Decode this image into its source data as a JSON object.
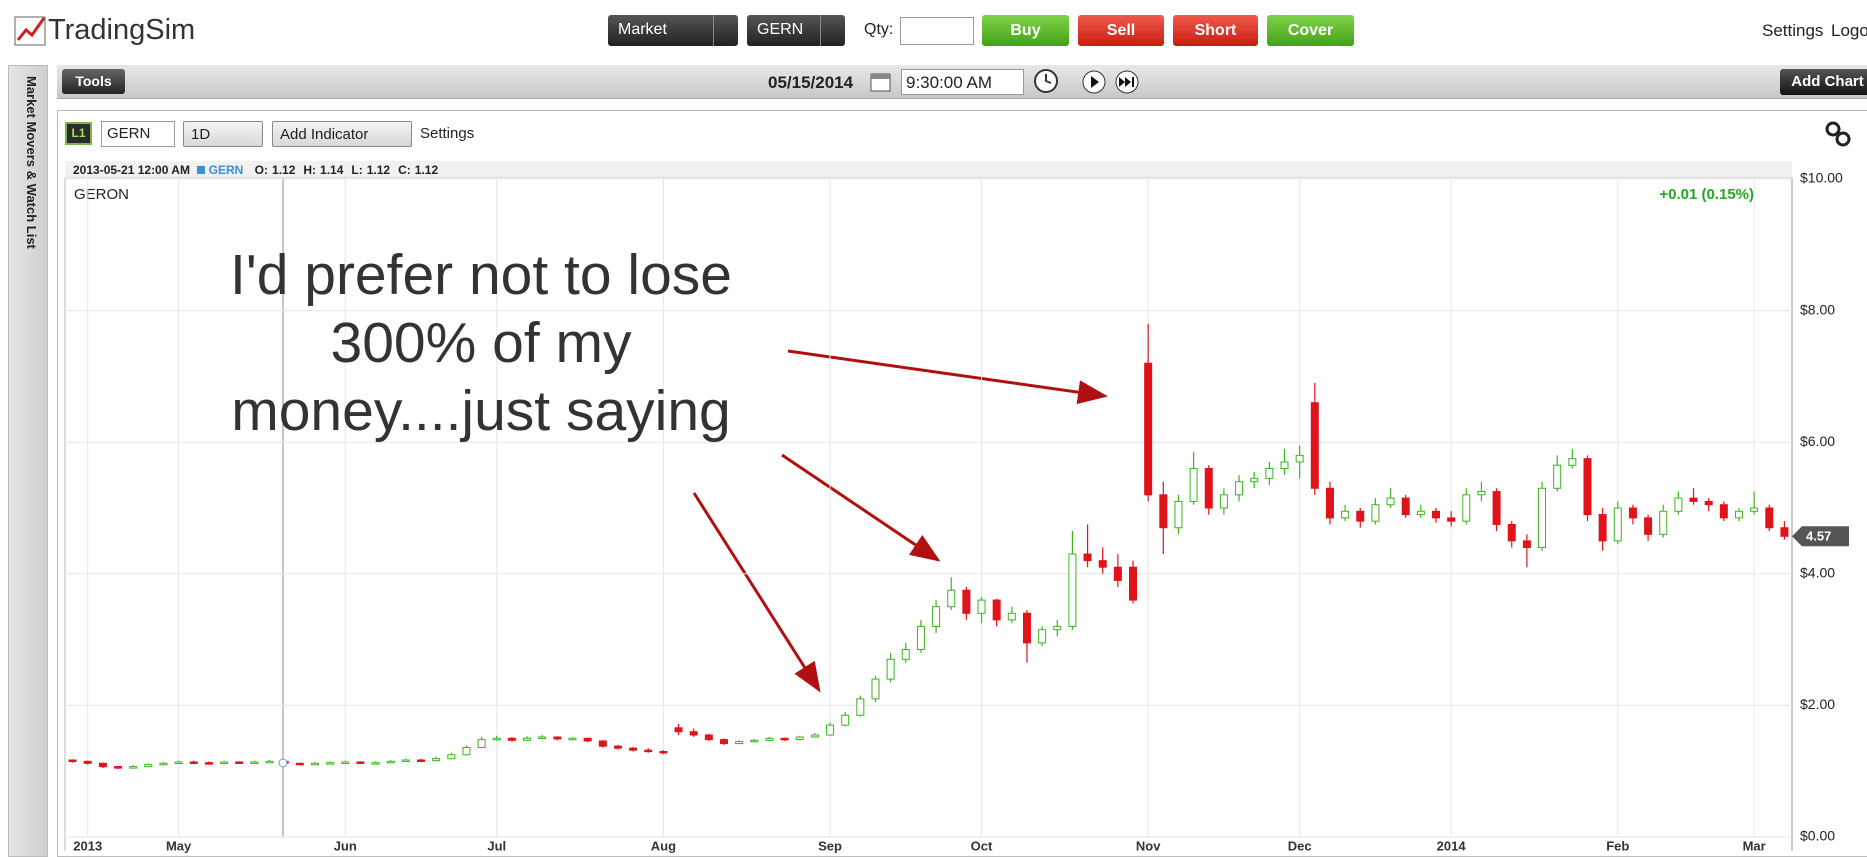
{
  "header": {
    "logo": "TradingSim",
    "order_type": "Market",
    "symbol": "GERN",
    "qty_label": "Qty:",
    "buttons": [
      "Buy",
      "Sell",
      "Short",
      "Cover"
    ],
    "links": [
      "Settings",
      "Logo"
    ]
  },
  "toolbar": {
    "tools": "Tools",
    "date": "05/15/2014",
    "time": "9:30:00 AM",
    "add_chart": "Add Chart"
  },
  "sidebar": {
    "title": "Market Movers & Watch List"
  },
  "chart_panel": {
    "level": "L1",
    "symbol": "GERN",
    "interval": "1D",
    "add_indicator": "Add Indicator",
    "settings": "Settings"
  },
  "chart_data": {
    "type": "candlestick",
    "info_date": "2013-05-21 12:00 AM",
    "info_symbol": "GERN",
    "ohlc_info": [
      {
        "label": "O:",
        "value": 1.12
      },
      {
        "label": "H:",
        "value": 1.14
      },
      {
        "label": "L:",
        "value": 1.12
      },
      {
        "label": "C:",
        "value": 1.12
      }
    ],
    "name": "GERON",
    "change": "+0.01 (0.15%)",
    "annotation": [
      "I'd prefer not to lose",
      "300% of my",
      "money....just saying"
    ],
    "categories": [
      null,
      "2013",
      null,
      null,
      null,
      null,
      null,
      "May",
      null,
      null,
      null,
      null,
      null,
      null,
      null,
      null,
      null,
      null,
      "Jun",
      null,
      null,
      null,
      null,
      null,
      null,
      null,
      null,
      null,
      "Jul",
      null,
      null,
      null,
      null,
      null,
      null,
      null,
      null,
      null,
      null,
      "Aug",
      null,
      null,
      null,
      null,
      null,
      null,
      null,
      null,
      null,
      null,
      "Sep",
      null,
      null,
      null,
      null,
      null,
      null,
      null,
      null,
      null,
      "Oct",
      null,
      null,
      null,
      null,
      null,
      null,
      null,
      null,
      null,
      null,
      "Nov",
      null,
      null,
      null,
      null,
      null,
      null,
      null,
      null,
      null,
      "Dec",
      null,
      null,
      null,
      null,
      null,
      null,
      null,
      null,
      null,
      "2014",
      null,
      null,
      null,
      null,
      null,
      null,
      null,
      null,
      null,
      null,
      "Feb",
      null,
      null,
      null,
      null,
      null,
      null,
      null,
      null,
      "Mar",
      null,
      null
    ],
    "open": [
      1.17,
      1.15,
      1.12,
      1.07,
      1.05,
      1.07,
      1.1,
      1.12,
      1.14,
      1.13,
      1.12,
      1.14,
      1.13,
      1.14,
      1.15,
      1.12,
      1.11,
      1.12,
      1.13,
      1.14,
      1.12,
      1.13,
      1.15,
      1.17,
      1.16,
      1.19,
      1.25,
      1.36,
      1.48,
      1.5,
      1.47,
      1.5,
      1.52,
      1.49,
      1.5,
      1.46,
      1.38,
      1.35,
      1.32,
      1.3,
      1.66,
      1.6,
      1.55,
      1.48,
      1.42,
      1.45,
      1.47,
      1.5,
      1.48,
      1.52,
      1.55,
      1.7,
      1.85,
      2.1,
      2.4,
      2.7,
      2.85,
      3.2,
      3.5,
      3.75,
      3.4,
      3.6,
      3.3,
      3.4,
      2.95,
      3.15,
      3.2,
      4.3,
      4.2,
      4.1,
      4.1,
      7.2,
      5.2,
      4.7,
      5.1,
      5.6,
      5.0,
      5.2,
      5.4,
      5.45,
      5.6,
      5.7,
      6.6,
      5.3,
      4.85,
      4.95,
      4.8,
      5.05,
      5.15,
      4.9,
      4.95,
      4.85,
      4.8,
      5.2,
      5.25,
      4.75,
      4.5,
      4.4,
      5.3,
      5.65,
      5.75,
      4.9,
      4.5,
      5.0,
      4.85,
      4.6,
      4.95,
      5.15,
      5.1,
      5.05,
      4.85,
      4.95,
      5.0,
      4.7
    ],
    "high": [
      1.18,
      1.16,
      1.13,
      1.08,
      1.09,
      1.12,
      1.14,
      1.16,
      1.16,
      1.15,
      1.16,
      1.15,
      1.16,
      1.17,
      1.16,
      1.13,
      1.14,
      1.15,
      1.16,
      1.15,
      1.15,
      1.17,
      1.19,
      1.19,
      1.22,
      1.28,
      1.39,
      1.52,
      1.54,
      1.52,
      1.53,
      1.55,
      1.53,
      1.52,
      1.51,
      1.47,
      1.4,
      1.37,
      1.35,
      1.32,
      1.72,
      1.65,
      1.57,
      1.5,
      1.47,
      1.49,
      1.52,
      1.51,
      1.54,
      1.58,
      1.74,
      1.9,
      2.15,
      2.45,
      2.8,
      2.95,
      3.3,
      3.6,
      3.95,
      3.8,
      3.65,
      3.62,
      3.5,
      3.45,
      3.2,
      3.3,
      4.65,
      4.75,
      4.4,
      4.3,
      4.2,
      7.8,
      5.4,
      5.2,
      5.85,
      5.65,
      5.3,
      5.5,
      5.55,
      5.7,
      5.9,
      5.95,
      6.9,
      5.4,
      5.05,
      5.0,
      5.15,
      5.3,
      5.2,
      5.05,
      5.0,
      4.95,
      5.3,
      5.4,
      5.3,
      4.8,
      4.6,
      5.4,
      5.8,
      5.9,
      5.8,
      5.0,
      5.1,
      5.05,
      4.9,
      5.05,
      5.25,
      5.3,
      5.15,
      5.1,
      5.0,
      5.25,
      5.05,
      4.8
    ],
    "low": [
      1.13,
      1.1,
      1.05,
      1.03,
      1.04,
      1.06,
      1.09,
      1.11,
      1.12,
      1.11,
      1.11,
      1.12,
      1.12,
      1.13,
      1.11,
      1.1,
      1.1,
      1.11,
      1.12,
      1.11,
      1.11,
      1.12,
      1.14,
      1.14,
      1.15,
      1.18,
      1.24,
      1.35,
      1.46,
      1.45,
      1.46,
      1.49,
      1.47,
      1.47,
      1.44,
      1.36,
      1.33,
      1.3,
      1.28,
      1.26,
      1.55,
      1.52,
      1.46,
      1.4,
      1.41,
      1.44,
      1.46,
      1.46,
      1.47,
      1.51,
      1.54,
      1.68,
      1.83,
      2.05,
      2.35,
      2.65,
      2.8,
      3.1,
      3.45,
      3.3,
      3.25,
      3.2,
      3.25,
      2.65,
      2.9,
      3.05,
      3.15,
      4.1,
      4.0,
      3.8,
      3.55,
      5.1,
      4.3,
      4.6,
      5.05,
      4.9,
      4.9,
      5.1,
      5.3,
      5.35,
      5.5,
      5.45,
      5.2,
      4.75,
      4.8,
      4.7,
      4.75,
      5.0,
      4.85,
      4.85,
      4.78,
      4.72,
      4.75,
      5.1,
      4.65,
      4.4,
      4.1,
      4.35,
      5.25,
      5.6,
      4.8,
      4.35,
      4.45,
      4.75,
      4.5,
      4.55,
      4.9,
      5.05,
      4.95,
      4.8,
      4.8,
      4.9,
      4.65,
      4.52
    ],
    "close": [
      1.15,
      1.12,
      1.07,
      1.05,
      1.07,
      1.1,
      1.12,
      1.14,
      1.13,
      1.12,
      1.14,
      1.13,
      1.14,
      1.15,
      1.12,
      1.11,
      1.12,
      1.13,
      1.14,
      1.12,
      1.13,
      1.15,
      1.17,
      1.16,
      1.19,
      1.25,
      1.36,
      1.48,
      1.5,
      1.47,
      1.5,
      1.52,
      1.49,
      1.5,
      1.46,
      1.38,
      1.35,
      1.32,
      1.3,
      1.28,
      1.6,
      1.55,
      1.48,
      1.42,
      1.45,
      1.47,
      1.5,
      1.48,
      1.52,
      1.55,
      1.7,
      1.85,
      2.1,
      2.4,
      2.7,
      2.85,
      3.2,
      3.5,
      3.75,
      3.4,
      3.6,
      3.3,
      3.4,
      2.95,
      3.15,
      3.2,
      4.3,
      4.2,
      4.1,
      3.9,
      3.6,
      5.2,
      4.7,
      5.1,
      5.6,
      5.0,
      5.2,
      5.4,
      5.45,
      5.6,
      5.7,
      5.8,
      5.3,
      4.85,
      4.95,
      4.8,
      5.05,
      5.15,
      4.9,
      4.95,
      4.85,
      4.8,
      5.2,
      5.25,
      4.75,
      4.5,
      4.4,
      5.3,
      5.65,
      5.75,
      4.9,
      4.5,
      5.0,
      4.85,
      4.6,
      4.95,
      5.15,
      5.1,
      5.05,
      4.85,
      4.95,
      5.0,
      4.7,
      4.57
    ],
    "ylim": [
      0,
      10
    ],
    "yticks": [
      {
        "value": 0,
        "label": "$0.00"
      },
      {
        "value": 2,
        "label": "$2.00"
      },
      {
        "value": 4,
        "label": "$4.00"
      },
      {
        "value": 6,
        "label": "$6.00"
      },
      {
        "value": 8,
        "label": "$8.00"
      },
      {
        "value": 10,
        "label": "$10.00"
      }
    ],
    "grid": true,
    "up_color": "#3cb521",
    "down_color": "#e0131a",
    "last_price": 4.57
  }
}
